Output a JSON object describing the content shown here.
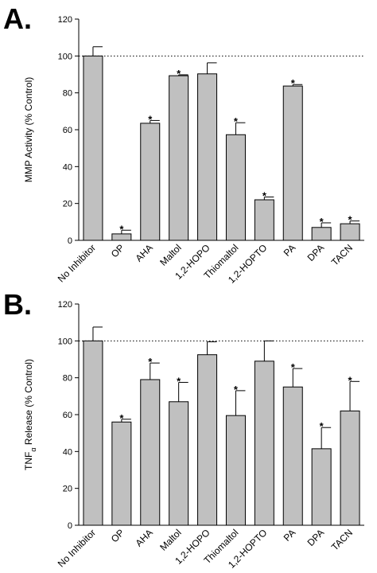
{
  "chart_data": [
    {
      "type": "bar",
      "panel_label": "A.",
      "ylabel": "MMP Activity (% Control)",
      "ylabel_main": "MMP Activity (% Control)",
      "ylabel_sub": "",
      "ylabel_rest": "",
      "ylim": [
        0,
        120
      ],
      "yticks": [
        "0",
        "20",
        "40",
        "60",
        "80",
        "100",
        "120"
      ],
      "reference_line": 100,
      "categories": [
        "No Inhibitor",
        "OP",
        "AHA",
        "Maltol",
        "1,2-HOPO",
        "Thiomaltol",
        "1,2-HOPTO",
        "PA",
        "DPA",
        "TACN"
      ],
      "values": [
        100,
        3.5,
        63.5,
        89.3,
        90.3,
        57.3,
        22,
        83.7,
        7,
        9
      ],
      "errors": [
        5,
        2,
        1.5,
        0.5,
        6,
        6.5,
        1.5,
        0.8,
        2.5,
        1.5
      ],
      "significant": [
        false,
        true,
        true,
        true,
        false,
        true,
        true,
        true,
        true,
        true
      ],
      "marker": "*",
      "bar_color": "#c0c0c0"
    },
    {
      "type": "bar",
      "panel_label": "B.",
      "ylabel": "TNFα Release (% Control)",
      "ylabel_main": "TNF",
      "ylabel_sub": "α",
      "ylabel_rest": " Release (% Control)",
      "ylim": [
        0,
        120
      ],
      "yticks": [
        "0",
        "20",
        "40",
        "60",
        "80",
        "100",
        "120"
      ],
      "reference_line": 100,
      "categories": [
        "No Inhibitor",
        "OP",
        "AHA",
        "Maltol",
        "1,2-HOPO",
        "Thiomaltol",
        "1,2-HOPTO",
        "PA",
        "DPA",
        "TACN"
      ],
      "values": [
        100,
        56,
        79,
        67,
        92.5,
        59.5,
        89,
        75,
        41.5,
        62
      ],
      "errors": [
        7.5,
        1.5,
        9,
        10.5,
        7,
        13.5,
        11,
        10,
        11.5,
        16
      ],
      "significant": [
        false,
        true,
        true,
        true,
        false,
        true,
        false,
        true,
        true,
        true
      ],
      "marker": "*",
      "bar_color": "#c0c0c0"
    }
  ]
}
